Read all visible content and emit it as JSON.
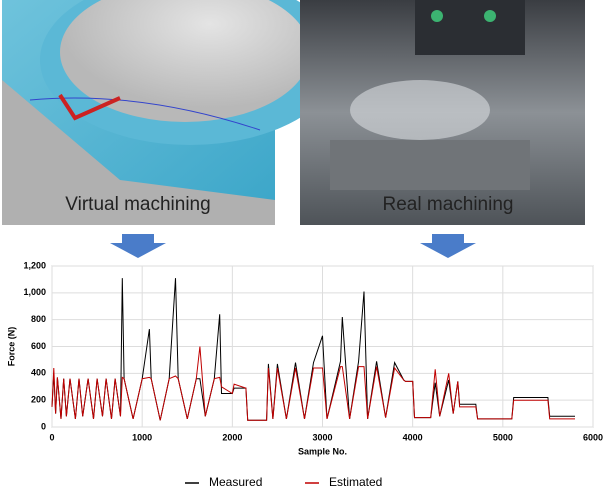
{
  "chart_data": {
    "type": "line",
    "annotations": [
      "Virtual machining",
      "Real machining"
    ],
    "xlabel": "Sample No.",
    "ylabel": "Force (N)",
    "xlim": [
      0,
      6000
    ],
    "xticks": [
      0,
      1000,
      2000,
      3000,
      4000,
      5000,
      6000
    ],
    "ylim": [
      0,
      1200
    ],
    "yticks": [
      0,
      200,
      400,
      600,
      800,
      {
        "value": 1000,
        "label": "1,000"
      },
      {
        "value": 1200,
        "label": "1,200"
      }
    ],
    "legend": "bottom",
    "x": [
      0,
      20,
      40,
      60,
      100,
      130,
      160,
      200,
      260,
      300,
      340,
      400,
      460,
      500,
      560,
      600,
      660,
      700,
      760,
      780,
      800,
      900,
      1000,
      1080,
      1100,
      1200,
      1300,
      1370,
      1400,
      1500,
      1600,
      1640,
      1700,
      1800,
      1860,
      1880,
      2000,
      2020,
      2150,
      2170,
      2380,
      2400,
      2450,
      2500,
      2600,
      2700,
      2800,
      2900,
      3000,
      3050,
      3200,
      3220,
      3300,
      3400,
      3460,
      3500,
      3600,
      3700,
      3800,
      3900,
      3920,
      4000,
      4020,
      4200,
      4250,
      4300,
      4400,
      4450,
      4500,
      4520,
      4700,
      4720,
      4900,
      4920,
      5100,
      5120,
      5300,
      5500,
      5520,
      5800
    ],
    "series": [
      {
        "name": "Measured",
        "color": "#000000",
        "values": [
          150,
          400,
          100,
          370,
          60,
          360,
          80,
          360,
          60,
          360,
          80,
          360,
          60,
          360,
          80,
          360,
          60,
          360,
          80,
          1110,
          360,
          60,
          360,
          730,
          360,
          50,
          360,
          1110,
          360,
          60,
          360,
          360,
          80,
          360,
          840,
          250,
          250,
          290,
          290,
          50,
          50,
          470,
          60,
          470,
          60,
          480,
          60,
          480,
          680,
          60,
          490,
          820,
          60,
          490,
          1010,
          60,
          490,
          70,
          480,
          350,
          340,
          340,
          70,
          70,
          330,
          80,
          350,
          100,
          340,
          170,
          170,
          60,
          60,
          60,
          60,
          220,
          220,
          220,
          80,
          80
        ]
      },
      {
        "name": "Estimated",
        "color": "#c00000",
        "values": [
          150,
          440,
          100,
          370,
          60,
          360,
          80,
          360,
          60,
          360,
          80,
          360,
          60,
          360,
          80,
          360,
          60,
          360,
          80,
          370,
          360,
          60,
          360,
          370,
          360,
          50,
          360,
          380,
          360,
          60,
          360,
          600,
          80,
          360,
          370,
          300,
          250,
          320,
          290,
          50,
          50,
          440,
          60,
          440,
          60,
          440,
          60,
          440,
          440,
          60,
          450,
          450,
          60,
          450,
          450,
          60,
          450,
          70,
          440,
          350,
          340,
          340,
          70,
          70,
          430,
          80,
          400,
          100,
          340,
          150,
          150,
          60,
          60,
          60,
          60,
          200,
          200,
          200,
          60,
          60
        ]
      }
    ]
  }
}
